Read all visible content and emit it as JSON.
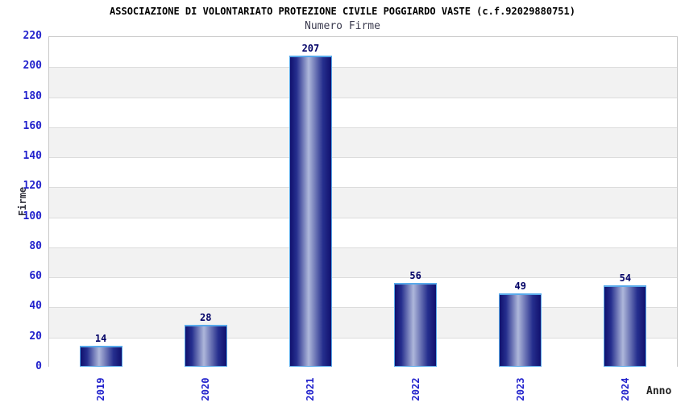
{
  "chart_data": {
    "type": "bar",
    "title": "ASSOCIAZIONE DI VOLONTARIATO PROTEZIONE CIVILE POGGIARDO VASTE (c.f.92029880751)",
    "subtitle": "Numero Firme",
    "categories": [
      "2019",
      "2020",
      "2021",
      "2022",
      "2023",
      "2024"
    ],
    "values": [
      14,
      28,
      207,
      56,
      49,
      54
    ],
    "xlabel": "Anno",
    "ylabel": "Firme",
    "ylim": [
      0,
      220
    ],
    "ytick_step": 20,
    "yticks": [
      0,
      20,
      40,
      60,
      80,
      100,
      120,
      140,
      160,
      180,
      200,
      220
    ],
    "grid": "alternating horizontal bands",
    "legend": "none",
    "colors": {
      "bar_dark": "#10106e",
      "bar_mid": "#262f8e",
      "bar_light": "#aeb7da",
      "bar_border": "#58a9ea",
      "axis_tick_label": "#2222cc",
      "value_label": "#000066",
      "band_gray": "#f2f2f2",
      "band_white": "#ffffff",
      "grid_line": "#dcdcdc",
      "frame": "#c9c9c9",
      "title": "#000000",
      "subtitle": "#3b3b4f"
    }
  }
}
